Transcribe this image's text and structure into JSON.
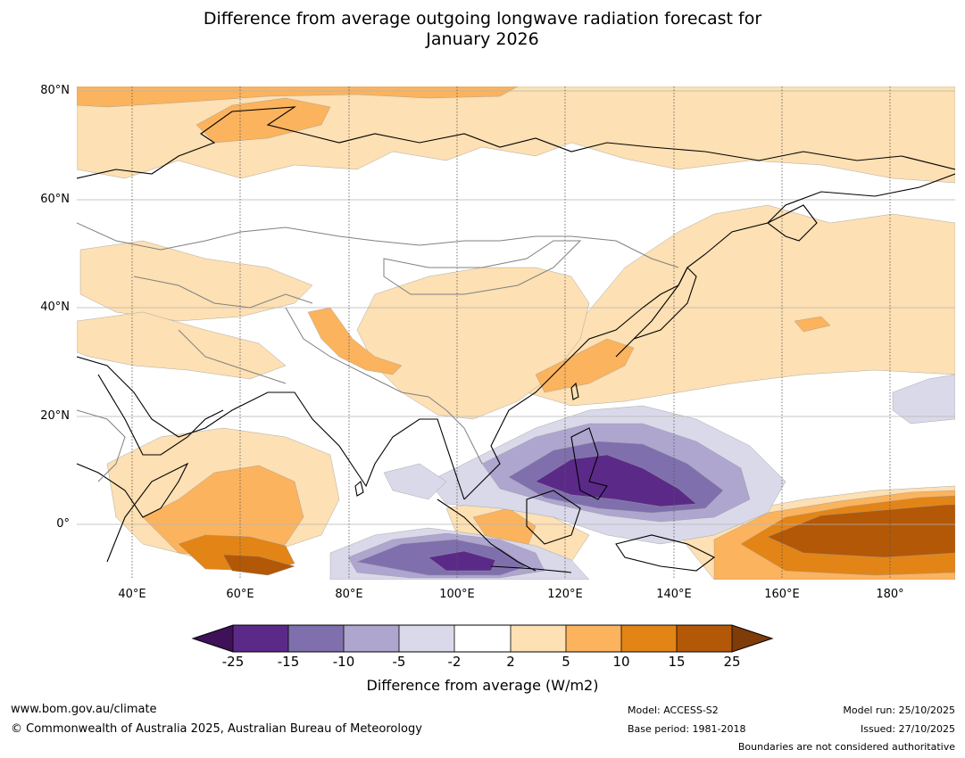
{
  "title": {
    "line1": "Difference from average outgoing longwave radiation forecast for",
    "line2": "January 2026"
  },
  "map": {
    "lat_labels": [
      "80°N",
      "60°N",
      "40°N",
      "20°N",
      "0°"
    ],
    "lon_labels": [
      "40°E",
      "60°E",
      "80°E",
      "100°E",
      "120°E",
      "140°E",
      "160°E",
      "180°"
    ]
  },
  "colorbar": {
    "ticks": [
      "-25",
      "-15",
      "-10",
      "-5",
      "-2",
      "2",
      "5",
      "10",
      "15",
      "25"
    ],
    "colors": [
      "#3f1158",
      "#5b2a88",
      "#7f70ad",
      "#aea6cf",
      "#d9d9ea",
      "#ffffff",
      "#fde0b3",
      "#fbb35e",
      "#e38416",
      "#b35806",
      "#7f3b08"
    ],
    "label": "Difference from average (W/m2)"
  },
  "footer": {
    "website": "www.bom.gov.au/climate",
    "copyright": "© Commonwealth of Australia 2025, Australian Bureau of Meteorology",
    "model": "Model: ACCESS-S2",
    "base_period": "Base period: 1981-2018",
    "model_run": "Model run: 25/10/2025",
    "issued": "Issued: 27/10/2025",
    "disclaimer": "Boundaries are not considered authoritative"
  }
}
